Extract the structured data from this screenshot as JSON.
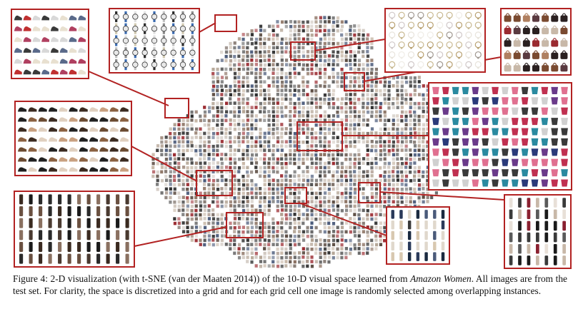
{
  "figure": {
    "insets": [
      {
        "name": "inset-sneakers",
        "category": "sneakers",
        "palette": [
          "#d8d8d8",
          "#c03030",
          "#3a3a3a",
          "#e8e0d0",
          "#5a6a8a",
          "#b04060"
        ]
      },
      {
        "name": "inset-watches",
        "category": "watches",
        "palette": [
          "#2a2a2a",
          "#8a8a8a",
          "#d0c8b0",
          "#3a6ab0",
          "#c0c0c0",
          "#e0e0e0"
        ]
      },
      {
        "name": "inset-jewelry",
        "category": "jewelry",
        "palette": [
          "#e8e4dc",
          "#c8b890",
          "#d0c8c8",
          "#a09890",
          "#efece6",
          "#b8a070"
        ]
      },
      {
        "name": "inset-handbags",
        "category": "handbags",
        "palette": [
          "#2a2020",
          "#7a4a30",
          "#b08060",
          "#5a3a40",
          "#c8b8a8",
          "#9a2a30"
        ]
      },
      {
        "name": "inset-sandals",
        "category": "sandals and heels",
        "palette": [
          "#3a2a20",
          "#c8a080",
          "#6a4a30",
          "#e0d0c0",
          "#8a6040",
          "#202020"
        ]
      },
      {
        "name": "inset-tops",
        "category": "tops and scarves",
        "palette": [
          "#c03050",
          "#2a3a7a",
          "#e07090",
          "#3a3a3a",
          "#6a3a8a",
          "#d0d0d0",
          "#2a8aa0"
        ]
      },
      {
        "name": "inset-boots",
        "category": "boots",
        "palette": [
          "#1a1a1a",
          "#3a2a20",
          "#6a5040",
          "#2a2a2a",
          "#8a7060",
          "#4a3a30"
        ]
      },
      {
        "name": "inset-jeans",
        "category": "jeans and pants",
        "palette": [
          "#1a2a40",
          "#2a3a5a",
          "#e0d8cc",
          "#3a3a3a",
          "#4a5a7a",
          "#d8c8b0"
        ]
      },
      {
        "name": "inset-dresses",
        "category": "dresses",
        "palette": [
          "#1a1a1a",
          "#3a3a3a",
          "#e8e0d8",
          "#8a2030",
          "#5a5a5a",
          "#c8b8a8"
        ]
      }
    ],
    "scatter_palette": [
      "#3a3a3a",
      "#6a6a6a",
      "#8a7060",
      "#b0a090",
      "#5a4a40",
      "#c8b8a8",
      "#2a2a2a",
      "#9a2a30",
      "#4a5a7a",
      "#d0c8c0"
    ],
    "accent_color": "#b22222"
  },
  "caption": {
    "label": "Figure 4:",
    "text_before": " 2-D visualization (with t-SNE (van der Maaten 2014)) of the 10-D visual space learned from ",
    "dataset": "Amazon Women",
    "text_after": ". All images are from the test set. For clarity, the space is discretized into a grid and for each grid cell one image is randomly selected among overlapping instances."
  }
}
